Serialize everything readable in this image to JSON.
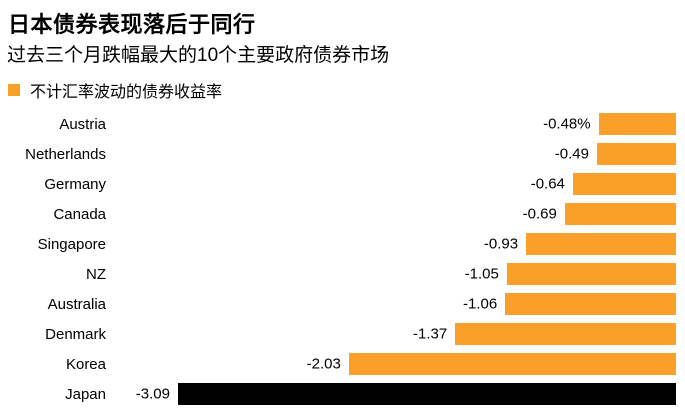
{
  "header": {
    "title": "日本债券表现落后于同行",
    "subtitle": "过去三个月跌幅最大的10个主要政府债券市场"
  },
  "legend": {
    "label": "不计汇率波动的债券收益率"
  },
  "colors": {
    "bar_orange": "#FAA028",
    "bar_highlight": "#000000",
    "text": "#000000",
    "background": "#FFFFFF"
  },
  "chart_data": {
    "type": "bar",
    "orientation": "horizontal",
    "title": "日本债券表现落后于同行",
    "subtitle": "过去三个月跌幅最大的10个主要政府债券市场",
    "legend_entries": [
      "不计汇率波动的债券收益率"
    ],
    "legend_position": "top-left",
    "grid": false,
    "axes_visible": false,
    "unit": "%",
    "xlim": [
      -3.09,
      0
    ],
    "categories": [
      "Austria",
      "Netherlands",
      "Germany",
      "Canada",
      "Singapore",
      "NZ",
      "Australia",
      "Denmark",
      "Korea",
      "Japan"
    ],
    "values": [
      -0.48,
      -0.49,
      -0.64,
      -0.69,
      -0.93,
      -1.05,
      -1.06,
      -1.37,
      -2.03,
      -3.09
    ],
    "value_labels": [
      "-0.48%",
      "-0.49",
      "-0.64",
      "-0.69",
      "-0.93",
      "-1.05",
      "-1.06",
      "-1.37",
      "-2.03",
      "-3.09"
    ],
    "highlight_category": "Japan"
  }
}
